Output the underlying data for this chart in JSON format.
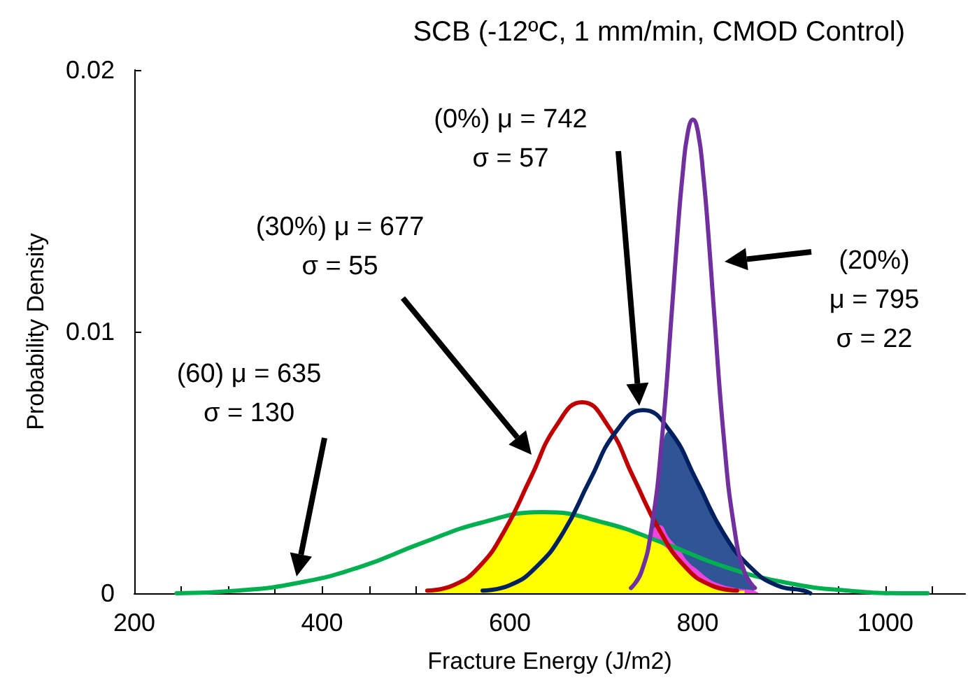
{
  "chart_data": {
    "type": "line",
    "title": "SCB (-12ºC, 1 mm/min, CMOD Control)",
    "xlabel": "Fracture Energy (J/m2)",
    "ylabel": "Probability Density",
    "xlim": [
      200,
      1085
    ],
    "ylim": [
      0,
      0.02
    ],
    "xticks": [
      200,
      {
        "value": 250,
        "label": null
      },
      {
        "value": 300,
        "label": null
      },
      {
        "value": 350,
        "label": null
      },
      400,
      {
        "value": 450,
        "label": null
      },
      {
        "value": 500,
        "label": null
      },
      {
        "value": 550,
        "label": null
      },
      600,
      {
        "value": 650,
        "label": null
      },
      {
        "value": 700,
        "label": null
      },
      {
        "value": 750,
        "label": null
      },
      800,
      {
        "value": 850,
        "label": null
      },
      {
        "value": 900,
        "label": null
      },
      {
        "value": 950,
        "label": null
      },
      1000,
      {
        "value": 1050,
        "label": null
      }
    ],
    "yticks": [
      0,
      0.01,
      0.02
    ],
    "marker": "none",
    "series": [
      {
        "type": "area",
        "color": "#2f5597",
        "x": [
          750,
          760,
          770,
          780,
          790,
          800,
          810,
          820,
          830,
          840,
          850,
          860
        ],
        "values": [
          0.0022,
          0.0051,
          0.0062,
          0.0056,
          0.0049,
          0.0042,
          0.0034,
          0.0028,
          0.0021,
          0.0016,
          0.0008,
          0.0002
        ]
      },
      {
        "type": "area",
        "color": "#ee44dd",
        "x": [
          745,
          750,
          760,
          770,
          780,
          790,
          800,
          810,
          820,
          840,
          860,
          865
        ],
        "values": [
          0,
          0.0022,
          0.0026,
          0.0021,
          0.0017,
          0.0012,
          0.0009,
          0.0006,
          0.0004,
          0.0002,
          0.0001,
          0
        ]
      },
      {
        "type": "area",
        "color": "#ffff00",
        "x": [
          512,
          540,
          560,
          580,
          600,
          620,
          640,
          660,
          680,
          700,
          720,
          740,
          760,
          780,
          800,
          820,
          840,
          850
        ],
        "values": [
          0.0001,
          0.0003,
          0.0008,
          0.0015,
          0.0027,
          0.00305,
          0.00307,
          0.003,
          0.0029,
          0.0027,
          0.0025,
          0.0022,
          0.0019,
          0.0013,
          0.0006,
          0.00025,
          0.0001,
          0.0001
        ]
      },
      {
        "color": "#00b050",
        "x": [
          245,
          310,
          375,
          440,
          505,
          570,
          635,
          700,
          765,
          830,
          895,
          960,
          1025,
          1045
        ],
        "values": [
          0,
          0.0001,
          0.0004,
          0.001,
          0.0019,
          0.0027,
          0.0031,
          0.0027,
          0.0019,
          0.001,
          0.0004,
          0.0001,
          0,
          0
        ]
      },
      {
        "color": "#c00000",
        "x": [
          512,
          539.5,
          567,
          594.5,
          622,
          649.5,
          677,
          704.5,
          732,
          759.5,
          787,
          814.5,
          842
        ],
        "values": [
          0.0001,
          0.0003,
          0.001,
          0.0024,
          0.0044,
          0.0064,
          0.0073,
          0.0064,
          0.0044,
          0.0024,
          0.001,
          0.0003,
          0.0001
        ]
      },
      {
        "color": "#002060",
        "x": [
          571,
          599.5,
          628,
          656.5,
          685,
          713.5,
          742,
          770.5,
          799,
          827.5,
          856,
          884.5,
          913,
          920
        ],
        "values": [
          0.0001,
          0.0003,
          0.001,
          0.0023,
          0.0043,
          0.0062,
          0.007,
          0.0062,
          0.0043,
          0.0023,
          0.001,
          0.0003,
          0.0001,
          0
        ]
      },
      {
        "color": "#7030a0",
        "x": [
          729,
          740,
          751,
          762,
          773,
          778.5,
          784,
          789.5,
          795,
          800.5,
          806,
          811.5,
          817,
          828,
          839,
          850,
          861
        ],
        "values": [
          0.0002,
          0.0008,
          0.0025,
          0.0059,
          0.011,
          0.0137,
          0.016,
          0.0176,
          0.0181,
          0.0176,
          0.016,
          0.0137,
          0.011,
          0.0059,
          0.0025,
          0.0008,
          0.0002
        ]
      }
    ],
    "annotations": [
      "(60) μ = 635\nσ = 130",
      "(30%) μ = 677\nσ = 55",
      "(0%) μ = 742\nσ = 57",
      "(20%)\nμ = 795\nσ = 22"
    ]
  }
}
